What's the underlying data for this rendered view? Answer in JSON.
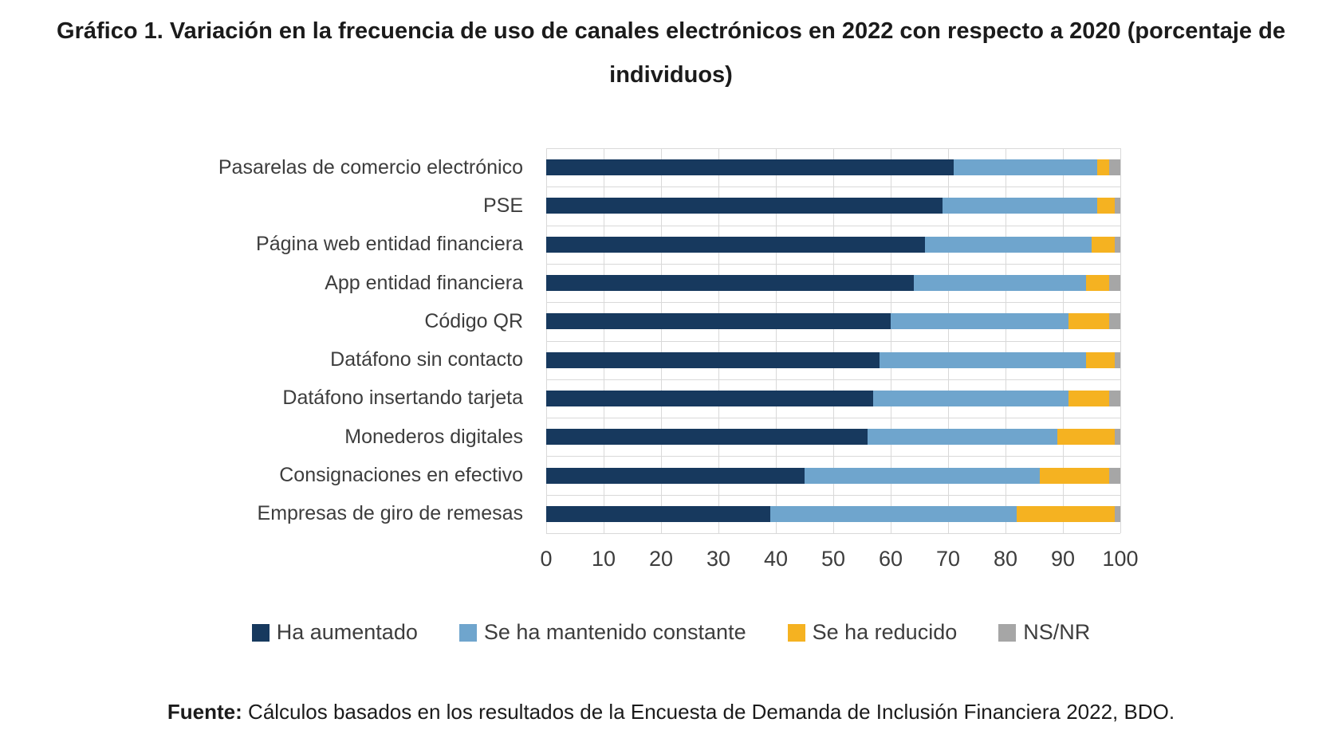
{
  "title": "Gráfico 1. Variación en la frecuencia de uso de canales electrónicos en 2022 con respecto a 2020 (porcentaje de individuos)",
  "footer": {
    "prefix": "Fuente:",
    "text": " Cálculos basados en los resultados de la Encuesta de Demanda de Inclusión Financiera 2022, BDO."
  },
  "colors": {
    "ha_aumentado": "#17395E",
    "se_ha_mantenido_constante": "#6FA5CD",
    "se_ha_reducido": "#F5B221",
    "ns_nr": "#A6A6A6",
    "gridline": "#D9D9D9",
    "text": "#3D3D3D"
  },
  "chart_data": {
    "type": "bar",
    "orientation": "horizontal",
    "stacked": true,
    "title": "Gráfico 1. Variación en la frecuencia de uso de canales electrónicos en 2022 con respecto a 2020 (porcentaje de individuos)",
    "categories": [
      "Pasarelas de comercio electrónico",
      "PSE",
      "Página web entidad financiera",
      "App entidad financiera",
      "Código QR",
      "Datáfono sin contacto",
      "Datáfono insertando tarjeta",
      "Monederos digitales",
      "Consignaciones en efectivo",
      "Empresas de giro de remesas"
    ],
    "series": [
      {
        "name": "Ha aumentado",
        "color": "#17395E",
        "values": [
          71,
          69,
          66,
          64,
          60,
          58,
          57,
          56,
          45,
          39
        ]
      },
      {
        "name": "Se ha mantenido constante",
        "color": "#6FA5CD",
        "values": [
          25,
          27,
          29,
          30,
          31,
          36,
          34,
          33,
          41,
          43
        ]
      },
      {
        "name": "Se ha reducido",
        "color": "#F5B221",
        "values": [
          2,
          3,
          4,
          4,
          7,
          5,
          7,
          10,
          12,
          17
        ]
      },
      {
        "name": "NS/NR",
        "color": "#A6A6A6",
        "values": [
          2,
          1,
          1,
          2,
          2,
          1,
          2,
          1,
          2,
          1
        ]
      }
    ],
    "xlabel": "",
    "ylabel": "",
    "xlim": [
      0,
      100
    ],
    "x_ticks": [
      0,
      10,
      20,
      30,
      40,
      50,
      60,
      70,
      80,
      90,
      100
    ],
    "grid": true,
    "legend_position": "bottom"
  }
}
